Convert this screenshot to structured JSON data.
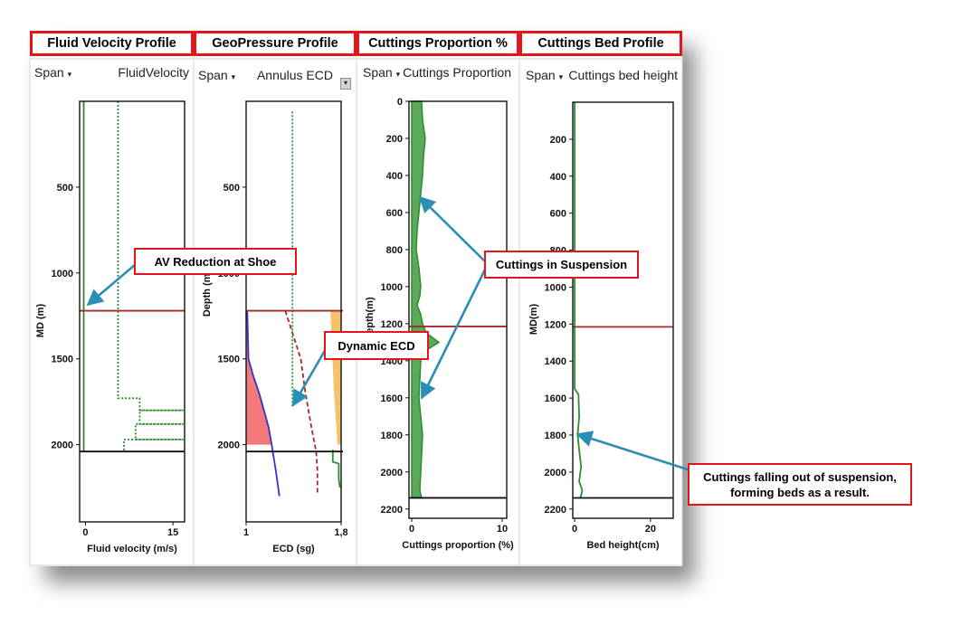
{
  "panels": [
    {
      "title": "Fluid Velocity Profile",
      "span_label": "Span",
      "track_label": "FluidVelocity",
      "chart_data": {
        "type": "line",
        "title": "",
        "xlabel": "Fluid velocity (m/s)",
        "ylabel": "MD (m)",
        "xlim": [
          -1,
          17
        ],
        "ylim": [
          2450,
          0
        ],
        "x_ticks": [
          0,
          15
        ],
        "x_tick_labels": [
          "0",
          "15"
        ],
        "y_ticks": [
          500,
          1000,
          1500,
          2000
        ],
        "y_tick_labels": [
          "500",
          "1000",
          "1500",
          "2000"
        ],
        "grid": false,
        "series": [
          {
            "style": "solid",
            "color": "#2e8b2e",
            "points": [
              [
                -0.3,
                0
              ],
              [
                -0.3,
                2040
              ]
            ]
          },
          {
            "style": "dotted",
            "color": "#2e8b2e",
            "points": [
              [
                5.6,
                0
              ],
              [
                5.6,
                1730
              ],
              [
                9.3,
                1730
              ],
              [
                9.3,
                1800
              ],
              [
                16.8,
                1800
              ],
              [
                9.3,
                1800
              ],
              [
                9.3,
                1880
              ],
              [
                16.8,
                1880
              ],
              [
                8.6,
                1880
              ],
              [
                8.6,
                1970
              ],
              [
                16.8,
                1970
              ],
              [
                6.6,
                1970
              ],
              [
                6.6,
                2040
              ]
            ]
          }
        ],
        "hlines": [
          {
            "y": 1220,
            "color": "#a52a2a"
          },
          {
            "y": 2040,
            "color": "#111111"
          }
        ]
      }
    },
    {
      "title": "GeoPressure Profile",
      "span_label": "Span",
      "track_label": "Annulus ECD",
      "chart_data": {
        "type": "line",
        "title": "",
        "xlabel": "ECD (sg)",
        "ylabel": "Depth (m)",
        "xlim": [
          1,
          1.8
        ],
        "ylim": [
          2450,
          0
        ],
        "x_ticks": [
          1,
          1.8
        ],
        "x_tick_labels": [
          "1",
          "1,8"
        ],
        "y_ticks": [
          500,
          1000,
          1500,
          2000
        ],
        "y_tick_labels": [
          "500",
          "1000",
          "1500",
          "2000"
        ],
        "grid": false,
        "series": [
          {
            "name": "",
            "style": "solid",
            "color": "#3333cc",
            "points": [
              [
                1,
                1220
              ],
              [
                1.01,
                1230
              ],
              [
                1.02,
                1500
              ],
              [
                1.06,
                1600
              ],
              [
                1.11,
                1700
              ],
              [
                1.15,
                1800
              ],
              [
                1.19,
                1900
              ],
              [
                1.21,
                1980
              ],
              [
                1.25,
                2150
              ],
              [
                1.28,
                2300
              ]
            ]
          },
          {
            "name": "",
            "style": "dashed",
            "color": "#a52a2a",
            "points": [
              [
                1.33,
                1220
              ],
              [
                1.46,
                1500
              ],
              [
                1.5,
                1700
              ],
              [
                1.55,
                1900
              ],
              [
                1.59,
                2040
              ],
              [
                1.6,
                2150
              ],
              [
                1.6,
                2280
              ]
            ]
          },
          {
            "name": "",
            "style": "dotted",
            "color": "#2e8b2e",
            "points": [
              [
                1.39,
                60
              ],
              [
                1.39,
                1220
              ],
              [
                1.39,
                1780
              ]
            ]
          },
          {
            "name": "",
            "style": "solid",
            "color": "#2e8b2e",
            "points": [
              [
                1.73,
                2030
              ],
              [
                1.73,
                2100
              ],
              [
                1.78,
                2110
              ],
              [
                1.78,
                2200
              ],
              [
                1.79,
                2250
              ]
            ]
          }
        ],
        "areas": [
          {
            "color": "#f4797b",
            "points": [
              [
                1,
                1220
              ],
              [
                1.01,
                1230
              ],
              [
                1.02,
                1500
              ],
              [
                1.06,
                1600
              ],
              [
                1.11,
                1700
              ],
              [
                1.15,
                1800
              ],
              [
                1.19,
                1900
              ],
              [
                1.21,
                2000
              ],
              [
                1,
                2000
              ]
            ]
          },
          {
            "color": "#f6c16b",
            "points": [
              [
                1.71,
                1220
              ],
              [
                1.8,
                1220
              ],
              [
                1.8,
                2000
              ],
              [
                1.77,
                2000
              ],
              [
                1.74,
                1700
              ],
              [
                1.72,
                1400
              ],
              [
                1.71,
                1220
              ]
            ]
          }
        ],
        "hlines": [
          {
            "y": 1220,
            "color": "#a52a2a"
          },
          {
            "y": 2040,
            "color": "#111111"
          }
        ]
      }
    },
    {
      "title": "Cuttings Proportion %",
      "span_label": "Span",
      "track_label": "Cuttings Proportion",
      "chart_data": {
        "type": "area",
        "title": "",
        "xlabel": "Cuttings proportion (%)",
        "ylabel": "Depth(m)",
        "xlim": [
          -0.3,
          10.5
        ],
        "ylim": [
          2250,
          0
        ],
        "x_ticks": [
          0,
          10
        ],
        "x_tick_labels": [
          "0",
          "10"
        ],
        "y_ticks": [
          0,
          200,
          400,
          600,
          800,
          1000,
          1200,
          1400,
          1600,
          1800,
          2000,
          2200
        ],
        "y_tick_labels": [
          "0",
          "200",
          "400",
          "600",
          "800",
          "1000",
          "1200",
          "1400",
          "1600",
          "1800",
          "2000",
          "2200"
        ],
        "grid": false,
        "series": [
          {
            "name": "",
            "color": "#2e8b2e",
            "points": [
              [
                1.1,
                0
              ],
              [
                1.2,
                100
              ],
              [
                1.5,
                200
              ],
              [
                1.3,
                300
              ],
              [
                1.2,
                400
              ],
              [
                1,
                500
              ],
              [
                0.8,
                600
              ],
              [
                0.6,
                700
              ],
              [
                0.5,
                800
              ],
              [
                0.8,
                900
              ],
              [
                1,
                1000
              ],
              [
                0.9,
                1050
              ],
              [
                0.6,
                1100
              ],
              [
                1,
                1150
              ],
              [
                1.2,
                1200
              ],
              [
                1.6,
                1250
              ],
              [
                3,
                1300
              ],
              [
                1.4,
                1350
              ],
              [
                1,
                1400
              ],
              [
                0.9,
                1500
              ],
              [
                0.8,
                1600
              ],
              [
                1,
                1700
              ],
              [
                1.2,
                1800
              ],
              [
                1.1,
                1900
              ],
              [
                1,
                2000
              ],
              [
                0.9,
                2100
              ],
              [
                1.1,
                2140
              ]
            ]
          }
        ],
        "hlines": [
          {
            "y": 1215,
            "color": "#a52a2a"
          },
          {
            "y": 2140,
            "color": "#111111"
          }
        ]
      }
    },
    {
      "title": "Cuttings Bed Profile",
      "span_label": "Span",
      "track_label": "Cuttings bed height",
      "chart_data": {
        "type": "line",
        "title": "",
        "xlabel": "Bed height(cm)",
        "ylabel": "MD(m)",
        "xlim": [
          -0.5,
          26
        ],
        "ylim": [
          2250,
          0
        ],
        "x_ticks": [
          0,
          20
        ],
        "x_tick_labels": [
          "0",
          "20"
        ],
        "y_ticks": [
          200,
          400,
          600,
          800,
          1000,
          1200,
          1400,
          1600,
          1800,
          2000,
          2200
        ],
        "y_tick_labels": [
          "200",
          "400",
          "600",
          "800",
          "1000",
          "1200",
          "1400",
          "1600",
          "1800",
          "2000",
          "2200"
        ],
        "grid": false,
        "series": [
          {
            "name": "",
            "color": "#2e8b2e",
            "points": [
              [
                0,
                0
              ],
              [
                0,
                1550
              ],
              [
                1,
                1580
              ],
              [
                1.2,
                1700
              ],
              [
                0.8,
                1800
              ],
              [
                1.3,
                1900
              ],
              [
                1.7,
                1970
              ],
              [
                1.2,
                2050
              ],
              [
                2,
                2100
              ],
              [
                1.5,
                2140
              ]
            ]
          }
        ],
        "hlines": [
          {
            "y": 1215,
            "color": "#a52a2a"
          },
          {
            "y": 2140,
            "color": "#111111"
          }
        ]
      }
    }
  ],
  "callouts": {
    "av_reduction": "AV Reduction at Shoe",
    "dynamic_ecd": "Dynamic ECD",
    "cuttings_in_suspension": "Cuttings in Suspension",
    "cuttings_falling_line1": "Cuttings falling out of suspension,",
    "cuttings_falling_line2": "forming beds as a result."
  },
  "colors": {
    "callout_border": "#e2151d",
    "arrow": "#2a8fb5",
    "fill_green": "#3f9a3f"
  }
}
